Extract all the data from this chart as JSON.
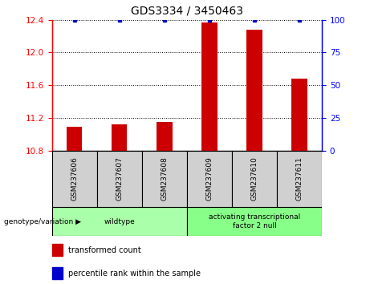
{
  "title": "GDS3334 / 3450463",
  "samples": [
    "GSM237606",
    "GSM237607",
    "GSM237608",
    "GSM237609",
    "GSM237610",
    "GSM237611"
  ],
  "transformed_counts": [
    11.09,
    11.12,
    11.15,
    12.37,
    12.28,
    11.68
  ],
  "percentile_ranks": [
    100,
    100,
    100,
    100,
    100,
    100
  ],
  "ylim_left": [
    10.8,
    12.4
  ],
  "ylim_right": [
    0,
    100
  ],
  "yticks_left": [
    10.8,
    11.2,
    11.6,
    12.0,
    12.4
  ],
  "yticks_right": [
    0,
    25,
    50,
    75,
    100
  ],
  "bar_color": "#cc0000",
  "dot_color": "#0000cc",
  "groups": [
    {
      "label": "wildtype",
      "samples": [
        0,
        1,
        2
      ],
      "color": "#aaffaa"
    },
    {
      "label": "activating transcriptional\nfactor 2 null",
      "samples": [
        3,
        4,
        5
      ],
      "color": "#88ff88"
    }
  ],
  "group_label": "genotype/variation",
  "legend_bar_label": "transformed count",
  "legend_dot_label": "percentile rank within the sample",
  "title_fontsize": 10,
  "tick_fontsize": 7.5,
  "bar_width": 0.35
}
